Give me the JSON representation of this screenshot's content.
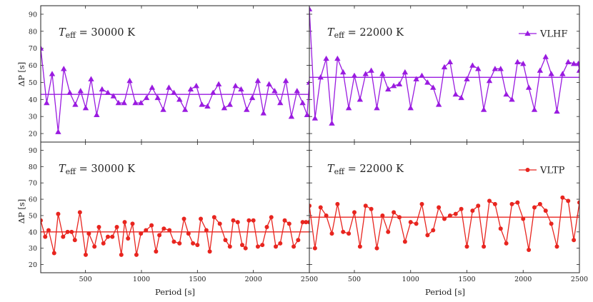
{
  "x_axis_label": "Period [s]",
  "y_axis_label": "ΔP [s]",
  "chart_data": [
    {
      "type": "line",
      "panel": "top-left",
      "annotation": {
        "prefix": "T",
        "subscript": "eff",
        "value": "= 30000 K"
      },
      "legend": null,
      "series": [
        {
          "color": "#9a1be0",
          "marker": "triangle",
          "x": [
            100,
            153,
            202,
            256,
            306,
            360,
            409,
            456,
            502,
            550,
            600,
            648,
            700,
            750,
            795,
            845,
            895,
            946,
            995,
            1045,
            1095,
            1145,
            1195,
            1245,
            1290,
            1340,
            1390,
            1440,
            1490,
            1540,
            1590,
            1640,
            1690,
            1740,
            1790,
            1840,
            1890,
            1940,
            1990,
            2040,
            2090,
            2140,
            2190,
            2240,
            2290,
            2340,
            2390,
            2440,
            2480,
            2500
          ],
          "values": [
            70,
            38,
            55,
            21,
            58,
            44,
            37,
            45,
            35,
            52,
            31,
            46,
            44,
            42,
            38,
            38,
            51,
            38,
            38,
            41,
            47,
            41,
            34,
            47,
            44,
            40,
            34,
            46,
            48,
            37,
            36,
            44,
            49,
            35,
            37,
            48,
            46,
            34,
            41,
            51,
            32,
            49,
            45,
            38,
            51,
            30,
            45,
            38,
            31,
            50
          ],
          "mean": 43
        }
      ],
      "xlim": [
        100,
        2500
      ],
      "ylim": [
        15,
        95
      ],
      "xticks": [
        500,
        1000,
        1500,
        2000,
        2500
      ],
      "yticks": [
        20,
        30,
        40,
        50,
        60,
        70,
        80,
        90
      ],
      "show_x_tick_labels": false
    },
    {
      "type": "line",
      "panel": "top-right",
      "annotation": {
        "prefix": "T",
        "subscript": "eff",
        "value": "= 22000 K"
      },
      "legend": {
        "label": "VLHF",
        "placement": "top-right"
      },
      "series": [
        {
          "name": "VLHF",
          "color": "#9a1be0",
          "marker": "triangle",
          "x": [
            100,
            150,
            200,
            250,
            300,
            350,
            400,
            450,
            500,
            550,
            600,
            650,
            700,
            750,
            800,
            850,
            900,
            950,
            1000,
            1050,
            1100,
            1150,
            1200,
            1250,
            1300,
            1350,
            1400,
            1450,
            1500,
            1550,
            1600,
            1650,
            1700,
            1750,
            1800,
            1850,
            1900,
            1950,
            2000,
            2050,
            2100,
            2150,
            2200,
            2250,
            2300,
            2350,
            2400,
            2450,
            2490,
            2500
          ],
          "values": [
            93,
            29,
            53,
            64,
            26,
            64,
            56,
            35,
            54,
            40,
            55,
            57,
            35,
            55,
            46,
            48,
            49,
            56,
            35,
            52,
            54,
            50,
            47,
            37,
            59,
            62,
            43,
            41,
            52,
            60,
            58,
            34,
            51,
            58,
            58,
            43,
            40,
            62,
            61,
            47,
            34,
            57,
            65,
            55,
            33,
            55,
            62,
            61,
            61,
            57
          ],
          "mean": 53
        }
      ],
      "xlim": [
        100,
        2500
      ],
      "ylim": [
        15,
        95
      ],
      "xticks": [
        500,
        1000,
        1500,
        2000,
        2500
      ],
      "yticks": [
        20,
        30,
        40,
        50,
        60,
        70,
        80,
        90
      ],
      "show_x_tick_labels": false
    },
    {
      "type": "line",
      "panel": "bottom-left",
      "annotation": {
        "prefix": "T",
        "subscript": "eff",
        "value": "= 30000 K"
      },
      "legend": null,
      "series": [
        {
          "color": "#e8251f",
          "marker": "circle",
          "x": [
            100,
            140,
            170,
            220,
            256,
            300,
            340,
            376,
            405,
            450,
            502,
            530,
            580,
            620,
            660,
            700,
            740,
            780,
            820,
            850,
            880,
            920,
            955,
            995,
            1040,
            1090,
            1130,
            1160,
            1200,
            1250,
            1290,
            1340,
            1380,
            1420,
            1460,
            1500,
            1530,
            1580,
            1610,
            1650,
            1700,
            1750,
            1790,
            1820,
            1860,
            1900,
            1930,
            1960,
            2000,
            2040,
            2080,
            2120,
            2160,
            2200,
            2240,
            2280,
            2320,
            2360,
            2400,
            2440,
            2470,
            2500
          ],
          "values": [
            47,
            37,
            41,
            27,
            51,
            37,
            40,
            40,
            35,
            52,
            26,
            39,
            31,
            43,
            33,
            37,
            37,
            43,
            26,
            46,
            36,
            45,
            26,
            39,
            41,
            44,
            28,
            38,
            42,
            41,
            34,
            33,
            48,
            39,
            33,
            32,
            48,
            41,
            28,
            49,
            45,
            35,
            31,
            47,
            46,
            32,
            30,
            47,
            47,
            31,
            32,
            43,
            49,
            31,
            33,
            47,
            45,
            31,
            35,
            46,
            46,
            46
          ],
          "mean": 40
        }
      ],
      "xlim": [
        100,
        2500
      ],
      "ylim": [
        15,
        95
      ],
      "xticks": [
        500,
        1000,
        1500,
        2000,
        2500
      ],
      "yticks": [
        20,
        30,
        40,
        50,
        60,
        70,
        80,
        90
      ],
      "show_x_tick_labels": true
    },
    {
      "type": "line",
      "panel": "bottom-right",
      "annotation": {
        "prefix": "T",
        "subscript": "eff",
        "value": "= 22000 K"
      },
      "legend": {
        "label": "VLTP",
        "placement": "top-right"
      },
      "series": [
        {
          "name": "VLTP",
          "color": "#e8251f",
          "marker": "circle",
          "x": [
            100,
            150,
            200,
            250,
            300,
            350,
            400,
            450,
            500,
            550,
            600,
            650,
            700,
            750,
            800,
            850,
            900,
            950,
            1000,
            1050,
            1100,
            1150,
            1200,
            1250,
            1300,
            1350,
            1400,
            1450,
            1500,
            1550,
            1600,
            1650,
            1700,
            1750,
            1800,
            1850,
            1900,
            1950,
            2000,
            2050,
            2100,
            2150,
            2200,
            2250,
            2300,
            2350,
            2400,
            2450,
            2500
          ],
          "values": [
            56,
            30,
            55,
            50,
            39,
            57,
            40,
            39,
            52,
            31,
            56,
            54,
            30,
            50,
            40,
            52,
            49,
            34,
            46,
            45,
            57,
            38,
            41,
            55,
            48,
            50,
            51,
            54,
            31,
            53,
            56,
            31,
            59,
            57,
            42,
            33,
            57,
            58,
            48,
            29,
            55,
            57,
            53,
            45,
            31,
            61,
            59,
            35,
            58
          ],
          "mean": 49
        }
      ],
      "xlim": [
        100,
        2500
      ],
      "ylim": [
        15,
        95
      ],
      "xticks": [
        500,
        1000,
        1500,
        2000,
        2500
      ],
      "yticks": [
        20,
        30,
        40,
        50,
        60,
        70,
        80,
        90
      ],
      "show_x_tick_labels": true
    }
  ]
}
